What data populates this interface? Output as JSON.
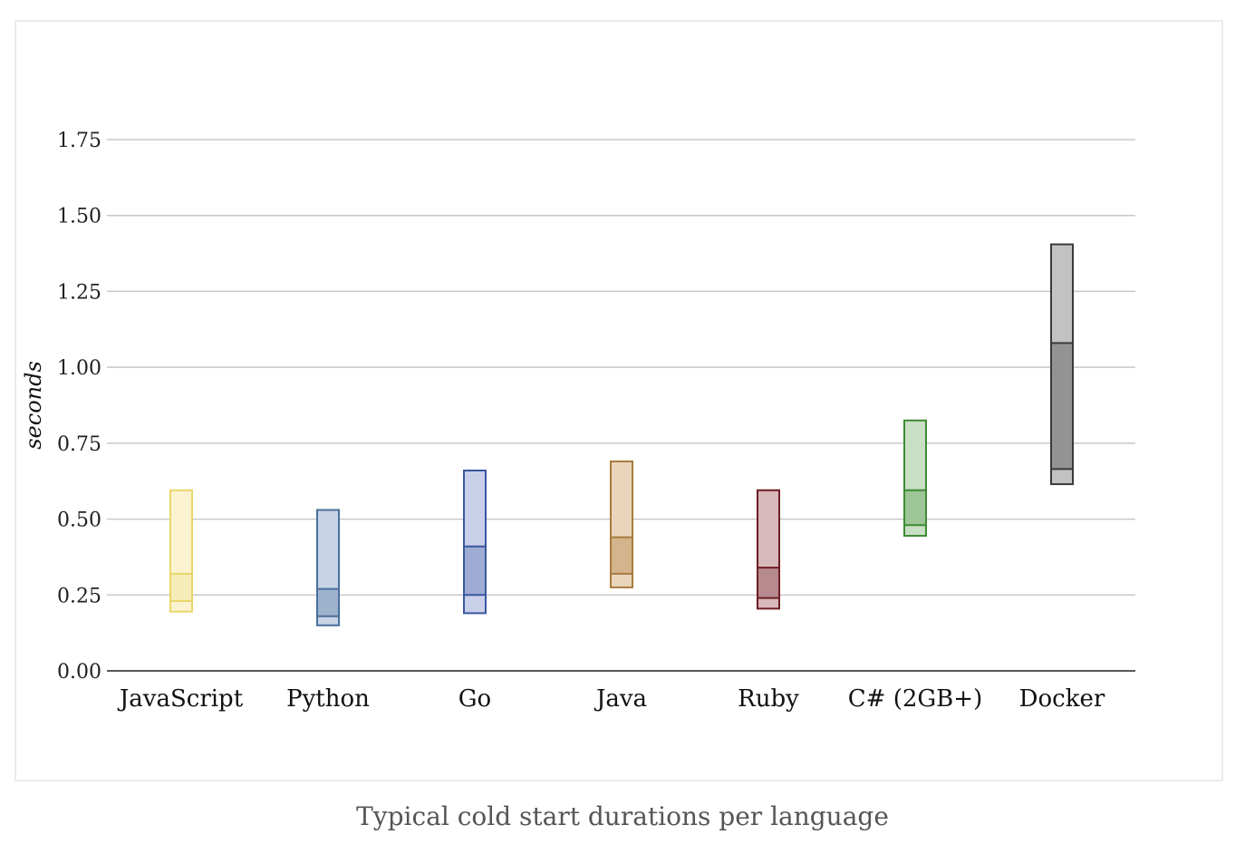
{
  "caption": "Typical cold start durations per language",
  "chart_data": {
    "type": "range-bar",
    "title": "",
    "xlabel": "",
    "ylabel": "seconds",
    "ylim": [
      0,
      1.75
    ],
    "yticks": [
      "0.00",
      "0.25",
      "0.50",
      "0.75",
      "1.00",
      "1.25",
      "1.50",
      "1.75"
    ],
    "grid": true,
    "categories": [
      "JavaScript",
      "Python",
      "Go",
      "Java",
      "Ruby",
      "C# (2GB+)",
      "Docker"
    ],
    "series": [
      {
        "category": "JavaScript",
        "min": 0.195,
        "low": 0.23,
        "high": 0.32,
        "max": 0.595,
        "color": "#e8d66a",
        "fill_light": "#fbf3cf",
        "fill_dark": "#f6ecb8"
      },
      {
        "category": "Python",
        "min": 0.15,
        "low": 0.18,
        "high": 0.27,
        "max": 0.53,
        "color": "#4a6f9c",
        "fill_light": "#c7d4e5",
        "fill_dark": "#9db2cc"
      },
      {
        "category": "Go",
        "min": 0.19,
        "low": 0.25,
        "high": 0.41,
        "max": 0.66,
        "color": "#3a57a0",
        "fill_light": "#c8cfe8",
        "fill_dark": "#9eabd3"
      },
      {
        "category": "Java",
        "min": 0.275,
        "low": 0.32,
        "high": 0.44,
        "max": 0.69,
        "color": "#a87b3e",
        "fill_light": "#ead5bc",
        "fill_dark": "#d3b48c"
      },
      {
        "category": "Ruby",
        "min": 0.205,
        "low": 0.24,
        "high": 0.34,
        "max": 0.595,
        "color": "#6e1e23",
        "fill_light": "#d7b8bb",
        "fill_dark": "#b68a8e"
      },
      {
        "category": "C# (2GB+)",
        "min": 0.445,
        "low": 0.48,
        "high": 0.595,
        "max": 0.825,
        "color": "#3f8a35",
        "fill_light": "#c9dfc4",
        "fill_dark": "#9dc595"
      },
      {
        "category": "Docker",
        "min": 0.615,
        "low": 0.665,
        "high": 1.08,
        "max": 1.405,
        "color": "#3a3a3a",
        "fill_light": "#c2c2c2",
        "fill_dark": "#939393"
      }
    ]
  }
}
